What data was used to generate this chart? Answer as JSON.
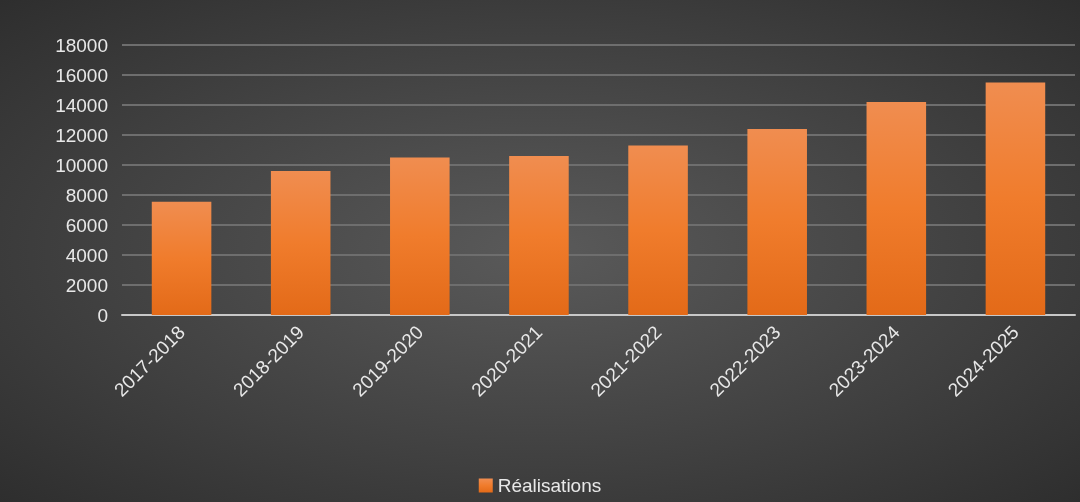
{
  "chart_data": {
    "type": "bar",
    "categories": [
      "2017-2018",
      "2018-2019",
      "2019-2020",
      "2020-2021",
      "2021-2022",
      "2022-2023",
      "2023-2024",
      "2024-2025"
    ],
    "series": [
      {
        "name": "Réalisations",
        "color": "#f07c2c",
        "values": [
          7550,
          9600,
          10500,
          10600,
          11300,
          12400,
          14200,
          15500
        ]
      }
    ],
    "ylim": [
      0,
      18000
    ],
    "yticks": [
      0,
      2000,
      4000,
      6000,
      8000,
      10000,
      12000,
      14000,
      16000,
      18000
    ],
    "grid": "y",
    "legend": "bottom"
  }
}
